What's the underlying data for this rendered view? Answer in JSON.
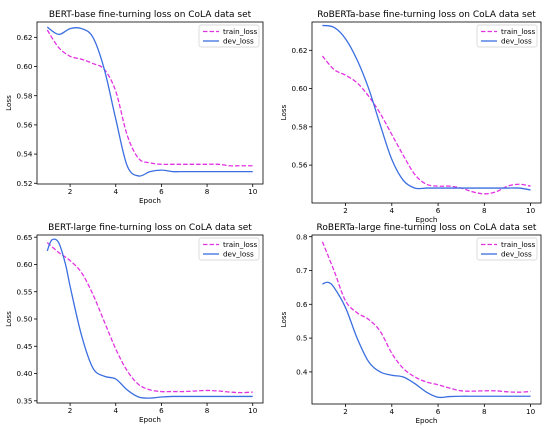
{
  "colors": {
    "train_loss": "#e233e2",
    "dev_loss": "#3b6fe0"
  },
  "chart_data": [
    {
      "type": "line",
      "title": "BERT-base fine-turning loss on CoLA data set",
      "xlabel": "Epoch",
      "ylabel": "Loss",
      "xlim": [
        0.55,
        10.45
      ],
      "ylim": [
        0.5195,
        0.6305
      ],
      "xticks": [
        2,
        4,
        6,
        8,
        10
      ],
      "yticks": [
        0.52,
        0.54,
        0.56,
        0.58,
        0.6,
        0.62
      ],
      "ytick_labels": [
        "0.52",
        "0.54",
        "0.56",
        "0.58",
        "0.60",
        "0.62"
      ],
      "legend": "top-right",
      "series": [
        {
          "name": "train_loss",
          "style": "dashed",
          "x": [
            1,
            1.5,
            2,
            2.5,
            3,
            3.5,
            4,
            4.5,
            5,
            5.5,
            6,
            6.5,
            7,
            7.5,
            8,
            8.5,
            9,
            9.5,
            10
          ],
          "y": [
            0.625,
            0.613,
            0.607,
            0.605,
            0.602,
            0.598,
            0.583,
            0.553,
            0.537,
            0.534,
            0.533,
            0.533,
            0.533,
            0.533,
            0.533,
            0.533,
            0.532,
            0.532,
            0.532
          ]
        },
        {
          "name": "dev_loss",
          "style": "solid",
          "x": [
            1,
            1.5,
            2,
            2.5,
            3,
            3.5,
            4,
            4.5,
            5,
            5.5,
            6,
            6.5,
            7,
            7.5,
            8,
            8.5,
            9,
            9.5,
            10
          ],
          "y": [
            0.627,
            0.622,
            0.626,
            0.626,
            0.62,
            0.598,
            0.564,
            0.532,
            0.525,
            0.528,
            0.529,
            0.528,
            0.528,
            0.528,
            0.528,
            0.528,
            0.528,
            0.528,
            0.528
          ]
        }
      ]
    },
    {
      "type": "line",
      "title": "RoBERTa-base fine-turning loss on CoLA data set",
      "xlabel": "Epoch",
      "ylabel": "Loss",
      "xlim": [
        0.55,
        10.45
      ],
      "ylim": [
        0.5402,
        0.6348
      ],
      "xticks": [
        2,
        4,
        6,
        8,
        10
      ],
      "yticks": [
        0.56,
        0.58,
        0.6,
        0.62
      ],
      "ytick_labels": [
        "0.56",
        "0.58",
        "0.60",
        "0.62"
      ],
      "legend": "top-right",
      "series": [
        {
          "name": "train_loss",
          "style": "dashed",
          "x": [
            1,
            1.5,
            2,
            2.5,
            3,
            3.5,
            4,
            4.5,
            5,
            5.5,
            6,
            6.5,
            7,
            7.5,
            8,
            8.5,
            9,
            9.5,
            10
          ],
          "y": [
            0.617,
            0.61,
            0.607,
            0.603,
            0.596,
            0.587,
            0.576,
            0.565,
            0.555,
            0.55,
            0.549,
            0.549,
            0.548,
            0.546,
            0.545,
            0.546,
            0.549,
            0.55,
            0.549
          ]
        },
        {
          "name": "dev_loss",
          "style": "solid",
          "x": [
            1,
            1.5,
            2,
            2.5,
            3,
            3.5,
            4,
            4.5,
            5,
            5.5,
            6,
            6.5,
            7,
            7.5,
            8,
            8.5,
            9,
            9.5,
            10
          ],
          "y": [
            0.633,
            0.632,
            0.626,
            0.615,
            0.6,
            0.581,
            0.563,
            0.552,
            0.548,
            0.548,
            0.548,
            0.548,
            0.548,
            0.548,
            0.548,
            0.548,
            0.548,
            0.548,
            0.547
          ]
        }
      ]
    },
    {
      "type": "line",
      "title": "BERT-large fine-turning loss on CoLA data set",
      "xlabel": "Epoch",
      "ylabel": "Loss",
      "xlim": [
        0.55,
        10.45
      ],
      "ylim": [
        0.346,
        0.654
      ],
      "xticks": [
        2,
        4,
        6,
        8,
        10
      ],
      "yticks": [
        0.35,
        0.4,
        0.45,
        0.5,
        0.55,
        0.6,
        0.65
      ],
      "ytick_labels": [
        "0.35",
        "0.40",
        "0.45",
        "0.50",
        "0.55",
        "0.60",
        "0.65"
      ],
      "legend": "top-right",
      "series": [
        {
          "name": "train_loss",
          "style": "dashed",
          "x": [
            1,
            1.5,
            2,
            2.5,
            3,
            3.5,
            4,
            4.5,
            5,
            5.5,
            6,
            6.5,
            7,
            7.5,
            8,
            8.5,
            9,
            9.5,
            10
          ],
          "y": [
            0.64,
            0.622,
            0.607,
            0.585,
            0.545,
            0.495,
            0.445,
            0.405,
            0.38,
            0.37,
            0.367,
            0.367,
            0.367,
            0.368,
            0.369,
            0.368,
            0.366,
            0.365,
            0.366
          ]
        },
        {
          "name": "dev_loss",
          "style": "solid",
          "x": [
            1,
            1.2,
            1.5,
            1.8,
            2,
            2.5,
            3,
            3.5,
            4,
            4.5,
            5,
            5.5,
            6,
            6.5,
            7,
            7.5,
            8,
            8.5,
            9,
            9.5,
            10
          ],
          "y": [
            0.625,
            0.645,
            0.64,
            0.6,
            0.56,
            0.47,
            0.41,
            0.395,
            0.39,
            0.37,
            0.357,
            0.355,
            0.357,
            0.358,
            0.358,
            0.358,
            0.358,
            0.358,
            0.358,
            0.358,
            0.358
          ]
        }
      ]
    },
    {
      "type": "line",
      "title": "RoBERTa-large fine-turning loss on CoLA data set",
      "xlabel": "Epoch",
      "ylabel": "Loss",
      "xlim": [
        0.55,
        10.45
      ],
      "ylim": [
        0.305,
        0.805
      ],
      "xticks": [
        2,
        4,
        6,
        8,
        10
      ],
      "yticks": [
        0.4,
        0.5,
        0.6,
        0.7,
        0.8
      ],
      "ytick_labels": [
        "0.4",
        "0.5",
        "0.6",
        "0.7",
        "0.8"
      ],
      "legend": "top-right",
      "series": [
        {
          "name": "train_loss",
          "style": "dashed",
          "x": [
            1,
            1.5,
            2,
            2.5,
            3,
            3.5,
            4,
            4.5,
            5,
            5.5,
            6,
            6.5,
            7,
            7.5,
            8,
            8.5,
            9,
            9.5,
            10
          ],
          "y": [
            0.785,
            0.7,
            0.61,
            0.575,
            0.555,
            0.52,
            0.455,
            0.41,
            0.385,
            0.37,
            0.362,
            0.352,
            0.344,
            0.343,
            0.344,
            0.344,
            0.341,
            0.34,
            0.342
          ]
        },
        {
          "name": "dev_loss",
          "style": "solid",
          "x": [
            1,
            1.25,
            1.5,
            2,
            2.5,
            3,
            3.5,
            4,
            4.5,
            5,
            5.5,
            6,
            6.5,
            7,
            7.5,
            8,
            8.5,
            9,
            9.5,
            10
          ],
          "y": [
            0.66,
            0.665,
            0.65,
            0.59,
            0.5,
            0.43,
            0.4,
            0.39,
            0.385,
            0.365,
            0.34,
            0.325,
            0.327,
            0.328,
            0.328,
            0.328,
            0.328,
            0.328,
            0.328,
            0.328
          ]
        }
      ]
    }
  ]
}
